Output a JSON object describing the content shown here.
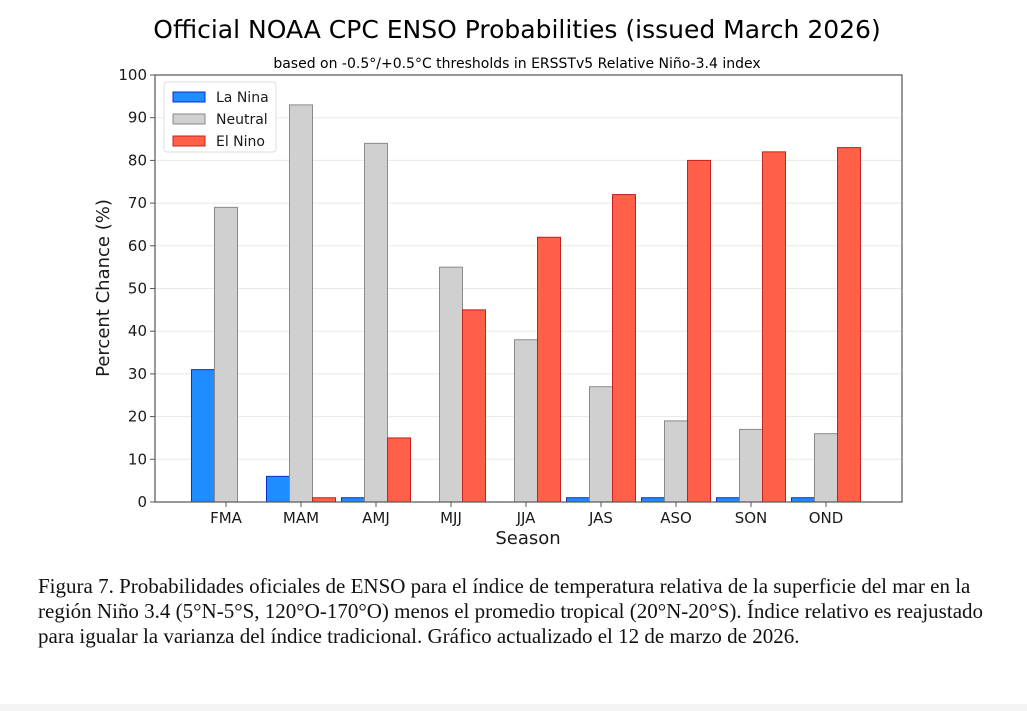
{
  "chart_data": {
    "type": "bar",
    "title": "Official NOAA CPC ENSO Probabilities (issued March 2026)",
    "subtitle": "based on -0.5°/+0.5°C thresholds in ERSSTv5 Relative Niño-3.4 index",
    "xlabel": "Season",
    "ylabel": "Percent Chance (%)",
    "ylim": [
      0,
      100
    ],
    "yticks": [
      0,
      10,
      20,
      30,
      40,
      50,
      60,
      70,
      80,
      90,
      100
    ],
    "grid": "horizontal",
    "legend_placement": "top-left",
    "categories": [
      "FMA",
      "MAM",
      "AMJ",
      "MJJ",
      "JJA",
      "JAS",
      "ASO",
      "SON",
      "OND"
    ],
    "series": [
      {
        "name": "La Nina",
        "color": "#1f8cff",
        "edge": "#0a2fc9",
        "values": [
          31,
          6,
          1,
          0,
          0,
          1,
          1,
          1,
          1
        ]
      },
      {
        "name": "Neutral",
        "color": "#d0d0d0",
        "edge": "#8a8a8a",
        "values": [
          69,
          93,
          84,
          55,
          38,
          27,
          19,
          17,
          16
        ]
      },
      {
        "name": "El Nino",
        "color": "#ff6047",
        "edge": "#c42020",
        "values": [
          0,
          1,
          15,
          45,
          62,
          72,
          80,
          82,
          83
        ]
      }
    ]
  },
  "caption": "Figura 7. Probabilidades oficiales de ENSO para el índice de temperatura relativa de la superficie del mar en la región Niño 3.4 (5°N-5°S, 120°O-170°O) menos el promedio tropical (20°N-20°S). Índice relativo es reajustado para igualar la varianza del índice tradicional. Gráfico actualizado el 12 de marzo de 2026."
}
